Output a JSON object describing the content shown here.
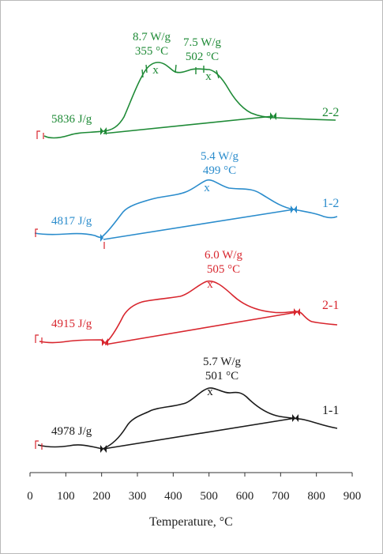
{
  "chart_data": {
    "type": "line",
    "title": "",
    "xlabel": "Temperature, °C",
    "ylabel": "",
    "xlim": [
      0,
      900
    ],
    "x_ticks": [
      "0",
      "100",
      "200",
      "300",
      "400",
      "500",
      "600",
      "700",
      "800",
      "900"
    ],
    "grid": false,
    "series": [
      {
        "name": "2-2",
        "color": "#1e8a36",
        "integration_limits": [
          210,
          690
        ],
        "enthalpy_label": "5836 J/g",
        "peaks": [
          {
            "x": 355,
            "heat_flow": "8.7 W/g",
            "temp": "355 °C"
          },
          {
            "x": 502,
            "heat_flow": "7.5 W/g",
            "temp": "502 °C"
          }
        ]
      },
      {
        "name": "1-2",
        "color": "#2a8ccc",
        "integration_limits": [
          205,
          740
        ],
        "enthalpy_label": "4817 J/g",
        "peaks": [
          {
            "x": 499,
            "heat_flow": "5.4 W/g",
            "temp": "499 °C"
          }
        ]
      },
      {
        "name": "2-1",
        "color": "#d8262e",
        "integration_limits": [
          210,
          745
        ],
        "enthalpy_label": "4915 J/g",
        "peaks": [
          {
            "x": 505,
            "heat_flow": "6.0 W/g",
            "temp": "505 °C"
          }
        ]
      },
      {
        "name": "1-1",
        "color": "#1a1a1a",
        "integration_limits": [
          205,
          745
        ],
        "enthalpy_label": "4978 J/g",
        "peaks": [
          {
            "x": 501,
            "heat_flow": "5.7 W/g",
            "temp": "501 °C"
          }
        ]
      }
    ]
  }
}
